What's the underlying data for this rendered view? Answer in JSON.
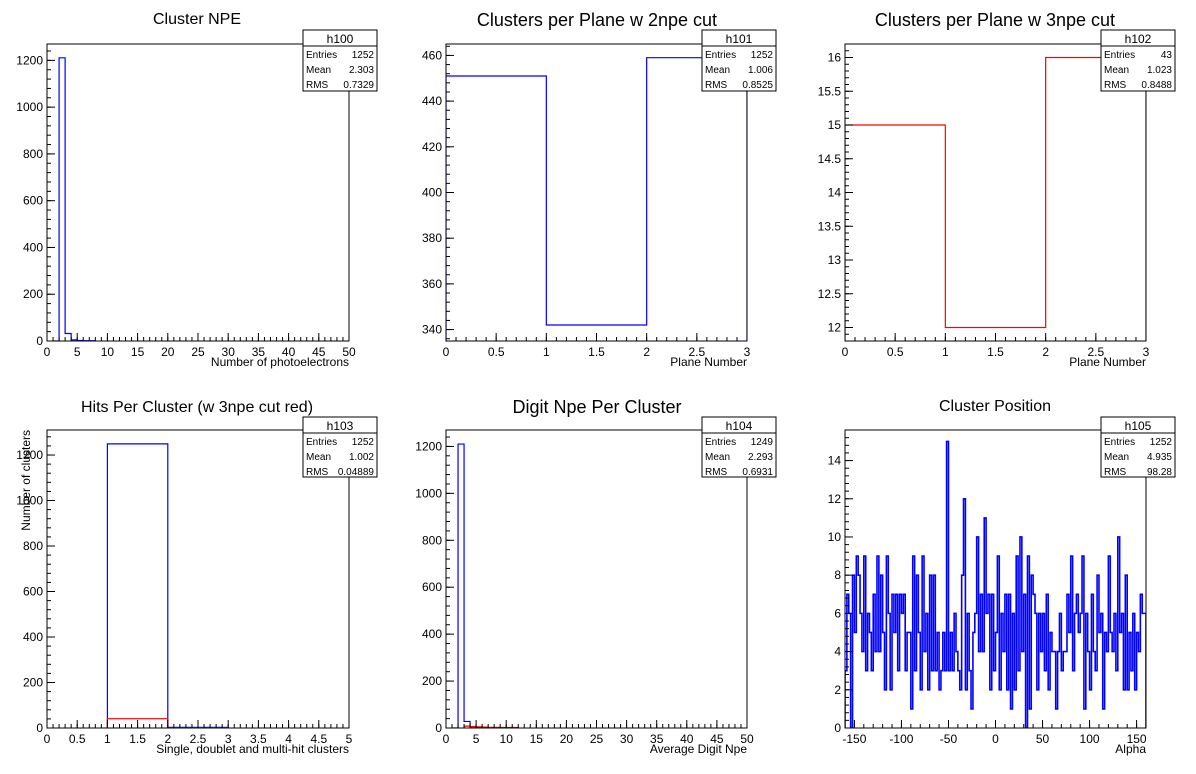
{
  "chart_data": [
    {
      "type": "histogram",
      "histogram_name": "h100",
      "title": "Cluster NPE",
      "xlabel": "Number of photoelectrons",
      "ylabel": "",
      "xlim": [
        0,
        50
      ],
      "ylim": [
        0,
        1270
      ],
      "xticks": [
        0,
        5,
        10,
        15,
        20,
        25,
        30,
        35,
        40,
        45,
        50
      ],
      "yticks": [
        0,
        200,
        400,
        600,
        800,
        1000,
        1200
      ],
      "stats": {
        "Entries": "1252",
        "Mean": "2.303",
        "RMS": "0.7329"
      },
      "series": [
        {
          "color": "#0000ff",
          "bins": [
            [
              1,
              2,
              0
            ],
            [
              2,
              3,
              1211
            ],
            [
              3,
              4,
              32
            ],
            [
              4,
              5,
              5
            ],
            [
              5,
              6,
              2
            ],
            [
              6,
              7,
              1
            ],
            [
              7,
              8,
              1
            ]
          ]
        }
      ]
    },
    {
      "type": "histogram",
      "histogram_name": "h101",
      "title": "Clusters per Plane w 2npe cut",
      "xlabel": "Plane Number",
      "ylabel": "",
      "xlim": [
        0,
        3
      ],
      "ylim": [
        335,
        465
      ],
      "xticks": [
        0,
        0.5,
        1,
        1.5,
        2,
        2.5,
        3
      ],
      "yticks": [
        340,
        360,
        380,
        400,
        420,
        440,
        460
      ],
      "stats": {
        "Entries": "1252",
        "Mean": "1.006",
        "RMS": "0.8525"
      },
      "series": [
        {
          "color": "#0000ff",
          "bins": [
            [
              0,
              1,
              451
            ],
            [
              1,
              2,
              342
            ],
            [
              2,
              3,
              459
            ]
          ]
        }
      ]
    },
    {
      "type": "histogram",
      "histogram_name": "h102",
      "title": "Clusters per Plane w 3npe cut",
      "xlabel": "Plane Number",
      "ylabel": "",
      "xlim": [
        0,
        3
      ],
      "ylim": [
        11.8,
        16.2
      ],
      "xticks": [
        0,
        0.5,
        1,
        1.5,
        2,
        2.5,
        3
      ],
      "yticks": [
        12,
        12.5,
        13,
        13.5,
        14,
        14.5,
        15,
        15.5,
        16
      ],
      "stats": {
        "Entries": "43",
        "Mean": "1.023",
        "RMS": "0.8488"
      },
      "series": [
        {
          "color": "#ff0000",
          "bins": [
            [
              0,
              1,
              15
            ],
            [
              1,
              2,
              12
            ],
            [
              2,
              3,
              16
            ]
          ]
        }
      ]
    },
    {
      "type": "histogram",
      "histogram_name": "h103",
      "title": "Hits Per Cluster (w 3npe cut red)",
      "xlabel": "Single, doublet and multi-hit clusters",
      "ylabel": "Number of clusters",
      "xlim": [
        0,
        5
      ],
      "ylim": [
        0,
        1310
      ],
      "xticks": [
        0,
        0.5,
        1,
        1.5,
        2,
        2.5,
        3,
        3.5,
        4,
        4.5,
        5
      ],
      "yticks": [
        0,
        200,
        400,
        600,
        800,
        1000,
        1200
      ],
      "stats": {
        "Entries": "1252",
        "Mean": "1.002",
        "RMS": "0.04889"
      },
      "series": [
        {
          "color": "#0000ff",
          "bins": [
            [
              1,
              2,
              1249
            ],
            [
              2,
              3,
              3
            ]
          ]
        },
        {
          "color": "#ff0000",
          "bins": [
            [
              1,
              2,
              41
            ],
            [
              2,
              3,
              2
            ]
          ]
        }
      ]
    },
    {
      "type": "histogram",
      "histogram_name": "h104",
      "title": "Digit Npe Per Cluster",
      "xlabel": "Average Digit Npe",
      "ylabel": "",
      "xlim": [
        0,
        50
      ],
      "ylim": [
        0,
        1270
      ],
      "xticks": [
        0,
        5,
        10,
        15,
        20,
        25,
        30,
        35,
        40,
        45,
        50
      ],
      "yticks": [
        0,
        200,
        400,
        600,
        800,
        1000,
        1200
      ],
      "stats": {
        "Entries": "1249",
        "Mean": "2.293",
        "RMS": "0.6931"
      },
      "series": [
        {
          "color": "#0000ff",
          "bins": [
            [
              1,
              2,
              0
            ],
            [
              2,
              3,
              1210
            ],
            [
              3,
              4,
              28
            ],
            [
              4,
              5,
              6
            ],
            [
              5,
              6,
              3
            ],
            [
              6,
              7,
              1
            ],
            [
              7,
              8,
              1
            ]
          ]
        },
        {
          "color": "#ff0000",
          "bins": [
            [
              3,
              4,
              8
            ],
            [
              4,
              5,
              6
            ],
            [
              5,
              6,
              5
            ],
            [
              6,
              7,
              4
            ],
            [
              7,
              8,
              3
            ],
            [
              8,
              9,
              3
            ],
            [
              9,
              10,
              2
            ],
            [
              10,
              11,
              2
            ],
            [
              11,
              12,
              2
            ]
          ]
        }
      ]
    },
    {
      "type": "histogram",
      "histogram_name": "h105",
      "title": "Cluster Position",
      "xlabel": "Alpha",
      "ylabel": "",
      "xlim": [
        -160,
        160
      ],
      "ylim": [
        0,
        15.6
      ],
      "xticks": [
        -150,
        -100,
        -50,
        0,
        50,
        100,
        150
      ],
      "yticks": [
        0,
        2,
        4,
        6,
        8,
        10,
        12,
        14
      ],
      "stats": {
        "Entries": "1252",
        "Mean": "4.935",
        "RMS": "98.28"
      },
      "series": [
        {
          "color": "#0000ff",
          "bin_width": 2,
          "x_start": -160,
          "values": [
            3,
            7,
            6,
            0,
            8,
            5,
            9,
            8,
            6,
            4,
            9,
            3,
            6,
            5,
            3,
            7,
            4,
            9,
            4,
            8,
            5,
            2,
            9,
            6,
            2,
            7,
            5,
            7,
            3,
            7,
            6,
            7,
            3,
            5,
            5,
            1,
            9,
            3,
            8,
            5,
            2,
            9,
            4,
            6,
            2,
            8,
            3,
            8,
            3,
            5,
            2,
            3,
            5,
            3,
            15,
            3,
            5,
            3,
            6,
            4,
            3,
            2,
            8,
            12,
            2,
            6,
            3,
            1,
            5,
            6,
            10,
            4,
            7,
            4,
            11,
            6,
            7,
            2,
            7,
            3,
            5,
            9,
            2,
            6,
            4,
            7,
            2,
            7,
            1,
            6,
            2,
            9,
            3,
            10,
            4,
            7,
            0,
            9,
            1,
            8,
            7,
            6,
            2,
            6,
            4,
            6,
            3,
            7,
            2,
            5,
            4,
            4,
            1,
            4,
            6,
            3,
            4,
            4,
            7,
            5,
            9,
            3,
            6,
            7,
            5,
            6,
            9,
            1,
            6,
            4,
            2,
            7,
            4,
            3,
            8,
            5,
            6,
            1,
            5,
            4,
            9,
            5,
            4,
            6,
            3,
            10,
            5,
            6,
            2,
            8,
            2,
            5,
            3,
            6,
            2,
            5,
            4,
            7,
            6,
            6
          ]
        }
      ]
    }
  ]
}
